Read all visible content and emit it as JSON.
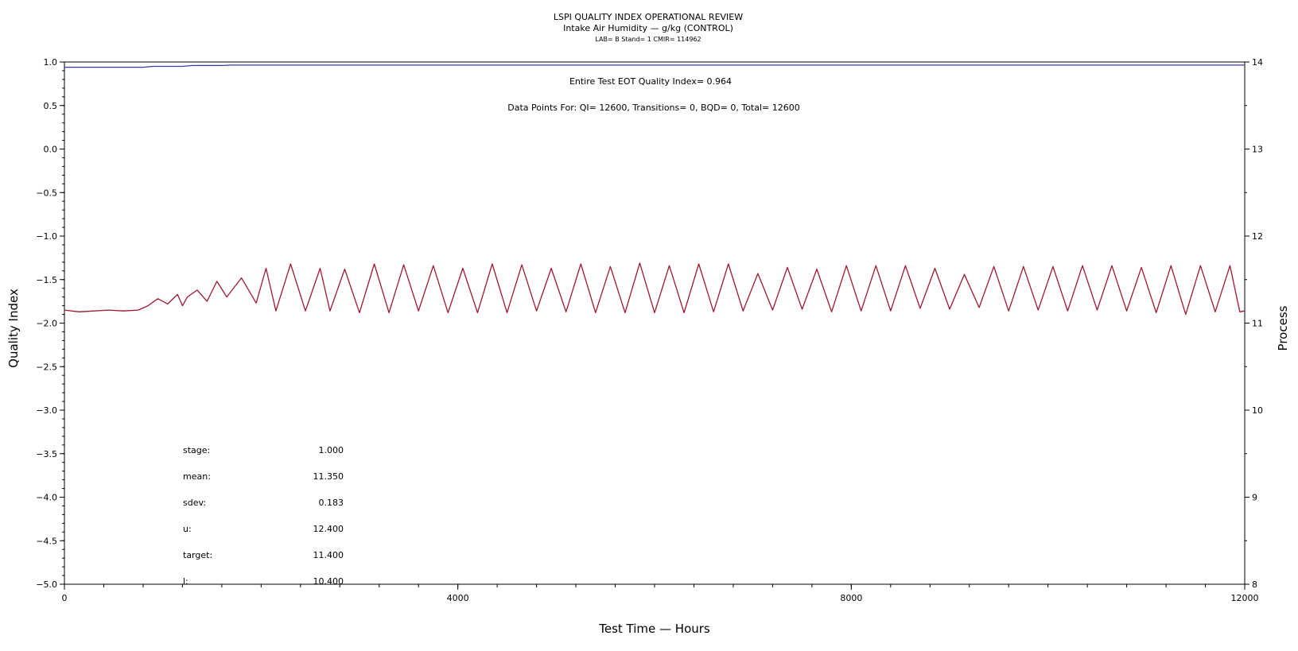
{
  "chart_data": {
    "type": "line",
    "title": "LSPI QUALITY INDEX OPERATIONAL REVIEW",
    "subtitle": "Intake Air Humidity — g/kg (CONTROL)",
    "subtitle2": "LAB= B Stand= 1 CMIR= 114962",
    "xlabel": "Test Time — Hours",
    "ylabel": "Quality Index",
    "y2label": "Process",
    "xlim": [
      0,
      12000
    ],
    "ylim": [
      -5.0,
      1.0
    ],
    "y2lim": [
      8,
      14
    ],
    "xticks": [
      "0",
      "4000",
      "8000",
      "12000"
    ],
    "yticks": [
      "1.0",
      "0.5",
      "0.0",
      "−0.5",
      "−1.0",
      "−1.5",
      "−2.0",
      "−2.5",
      "−3.0",
      "−3.5",
      "−4.0",
      "−4.5",
      "−5.0"
    ],
    "y2ticks": [
      "14",
      "13",
      "12",
      "11",
      "10",
      "9",
      "8"
    ],
    "grid": false,
    "annotations": {
      "eot": "Entire Test EOT Quality Index=   0.964",
      "points": "Data Points For: QI= 12600, Transitions=     0, BQD=     0, Total= 12600"
    },
    "stats": [
      {
        "label": "stage:",
        "value": "1.000"
      },
      {
        "label": "mean:",
        "value": "11.350"
      },
      {
        "label": "sdev:",
        "value": "0.183"
      },
      {
        "label": "u:",
        "value": "12.400"
      },
      {
        "label": "target:",
        "value": "11.400"
      },
      {
        "label": "l:",
        "value": "10.400"
      }
    ],
    "series": [
      {
        "axis": "left",
        "color": "#3a3aa8",
        "x": [
          0,
          800,
          900,
          1200,
          1300,
          1600,
          1700,
          12000
        ],
        "y": [
          0.94,
          0.94,
          0.95,
          0.95,
          0.96,
          0.96,
          0.964,
          0.964
        ]
      },
      {
        "axis": "right",
        "color": "#a01830",
        "x": [
          0,
          150,
          300,
          450,
          600,
          750,
          850,
          950,
          1050,
          1150,
          1200,
          1250,
          1350,
          1450,
          1550,
          1650,
          1800,
          1950,
          2050,
          2150,
          2300,
          2450,
          2600,
          2700,
          2850,
          3000,
          3150,
          3300,
          3450,
          3600,
          3750,
          3900,
          4050,
          4200,
          4350,
          4500,
          4650,
          4800,
          4950,
          5100,
          5250,
          5400,
          5550,
          5700,
          5850,
          6000,
          6150,
          6300,
          6450,
          6600,
          6750,
          6900,
          7050,
          7200,
          7350,
          7500,
          7650,
          7800,
          7950,
          8100,
          8250,
          8400,
          8550,
          8700,
          8850,
          9000,
          9150,
          9300,
          9450,
          9600,
          9750,
          9900,
          10050,
          10200,
          10350,
          10500,
          10650,
          10800,
          10950,
          11100,
          11250,
          11400,
          11550,
          11700,
          11850,
          11950,
          12000
        ],
        "y": [
          11.15,
          11.13,
          11.14,
          11.15,
          11.14,
          11.15,
          11.2,
          11.28,
          11.22,
          11.33,
          11.2,
          11.3,
          11.38,
          11.25,
          11.48,
          11.3,
          11.52,
          11.23,
          11.63,
          11.14,
          11.68,
          11.14,
          11.63,
          11.14,
          11.62,
          11.12,
          11.68,
          11.12,
          11.67,
          11.14,
          11.66,
          11.12,
          11.63,
          11.12,
          11.68,
          11.12,
          11.67,
          11.14,
          11.63,
          11.13,
          11.68,
          11.12,
          11.65,
          11.12,
          11.69,
          11.12,
          11.66,
          11.12,
          11.68,
          11.13,
          11.68,
          11.14,
          11.57,
          11.15,
          11.64,
          11.16,
          11.62,
          11.13,
          11.66,
          11.14,
          11.66,
          11.14,
          11.66,
          11.17,
          11.63,
          11.16,
          11.56,
          11.18,
          11.65,
          11.14,
          11.65,
          11.15,
          11.65,
          11.14,
          11.66,
          11.15,
          11.66,
          11.14,
          11.64,
          11.12,
          11.66,
          11.1,
          11.66,
          11.13,
          11.66,
          11.13,
          11.14
        ]
      }
    ]
  }
}
